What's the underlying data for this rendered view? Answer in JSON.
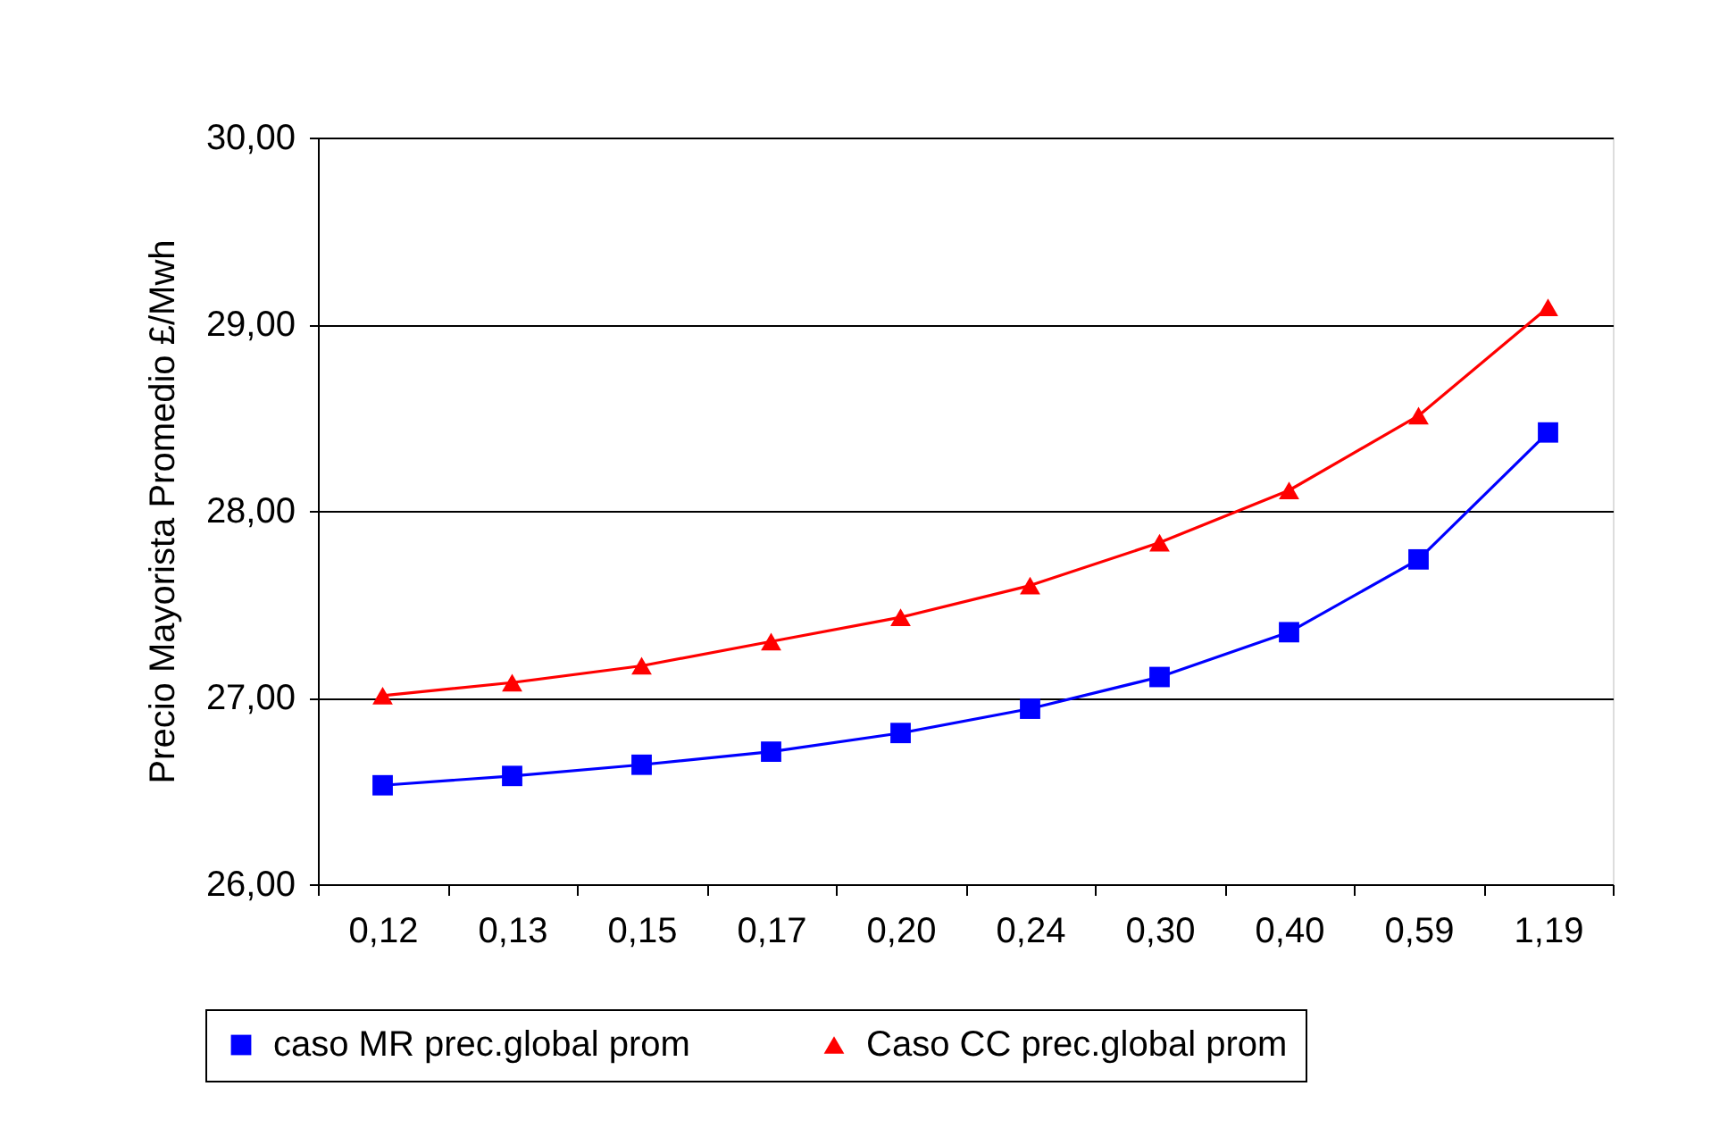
{
  "chart_data": {
    "type": "line",
    "ylabel": "Precio Mayorista Promedio £/Mwh",
    "categories": [
      "0,12",
      "0,13",
      "0,15",
      "0,17",
      "0,20",
      "0,24",
      "0,30",
      "0,40",
      "0,59",
      "1,19"
    ],
    "series": [
      {
        "name": "caso MR prec.global prom",
        "color": "#0000ff",
        "marker": "square",
        "values": [
          26.53,
          26.58,
          26.64,
          26.71,
          26.81,
          26.94,
          27.11,
          27.35,
          27.74,
          28.42
        ]
      },
      {
        "name": "Caso CC prec.global prom",
        "color": "#ff0000",
        "marker": "triangle",
        "values": [
          27.01,
          27.08,
          27.17,
          27.3,
          27.43,
          27.6,
          27.83,
          28.11,
          28.51,
          29.09
        ]
      }
    ],
    "ylim": [
      26,
      30
    ],
    "yticks": [
      {
        "value": 26,
        "label": "26,00"
      },
      {
        "value": 27,
        "label": "27,00"
      },
      {
        "value": 28,
        "label": "28,00"
      },
      {
        "value": 29,
        "label": "29,00"
      },
      {
        "value": 30,
        "label": "30,00"
      }
    ],
    "grid": "y",
    "legend": "bottom"
  }
}
